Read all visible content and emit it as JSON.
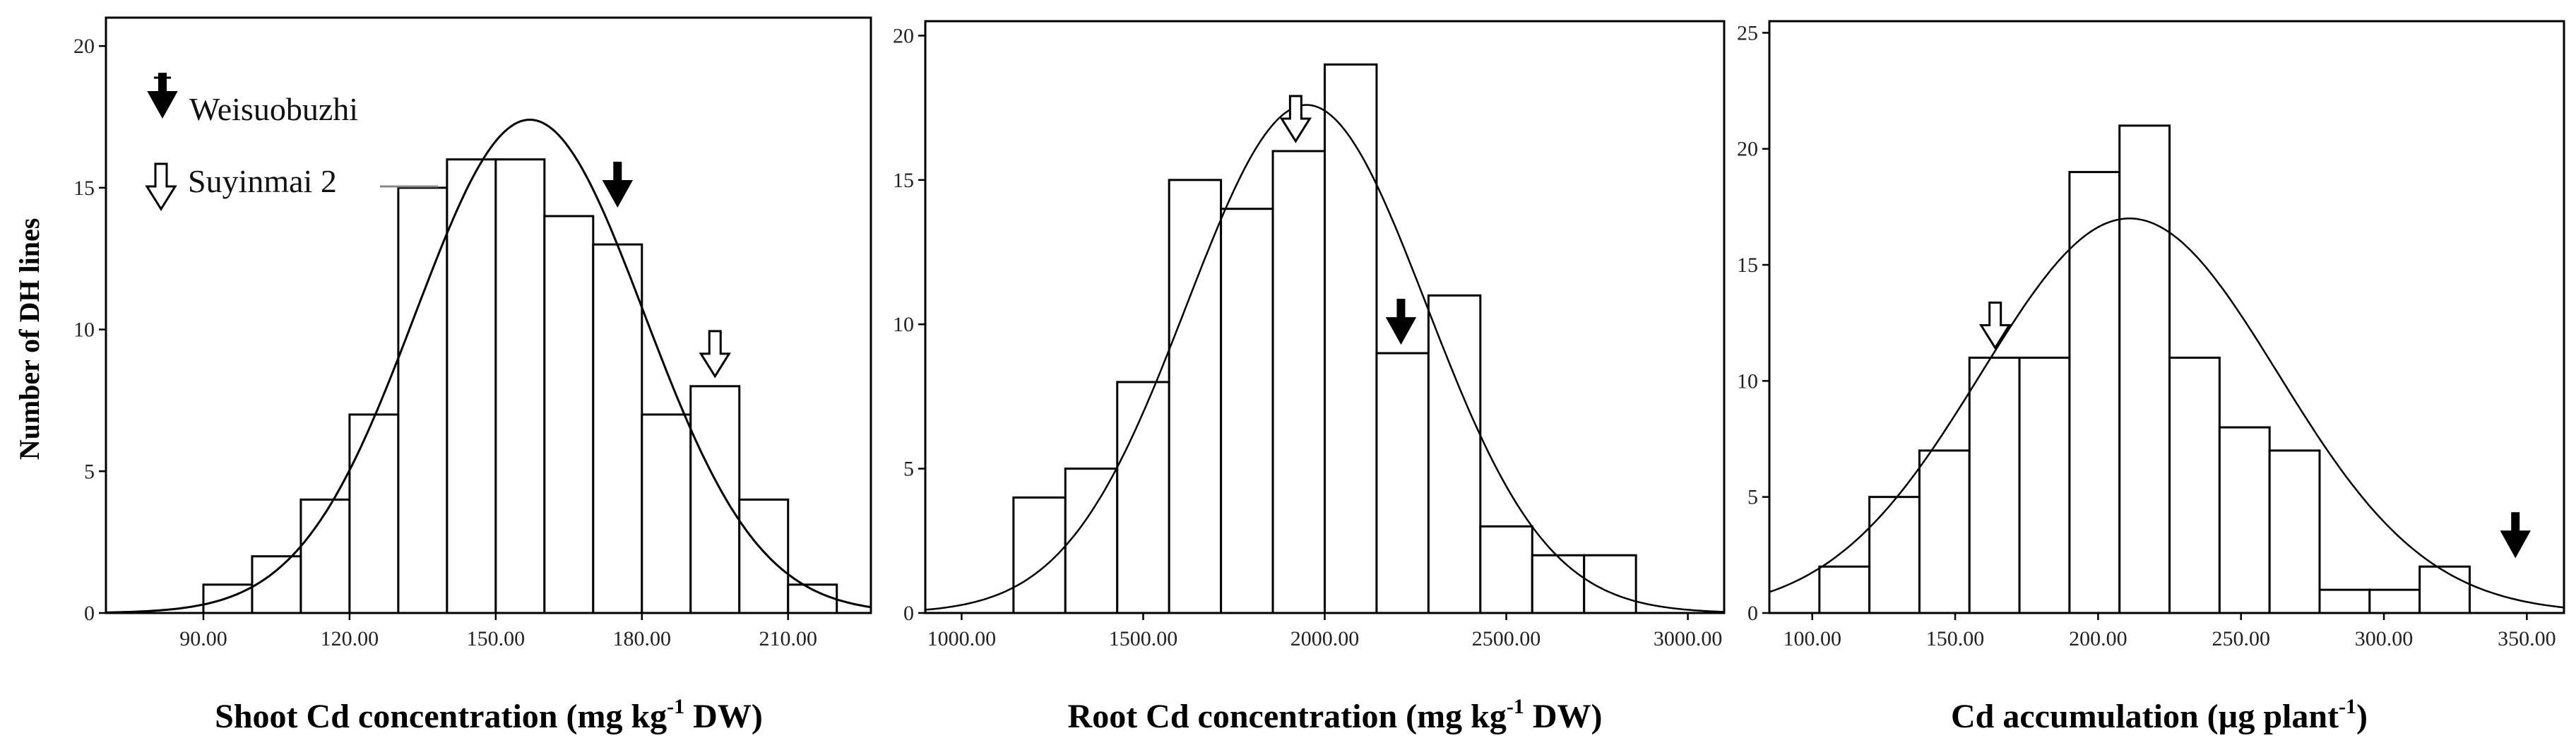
{
  "chart_data": [
    {
      "type": "bar",
      "id": "shoot",
      "xlabel": "Shoot Cd concentration (mg kg",
      "xlabel_sup": "-1",
      "xlabel_tail": " DW)",
      "ylabel": "Number of DH lines",
      "xlim": [
        70,
        227
      ],
      "ylim": [
        0,
        21
      ],
      "xticks": [
        90,
        120,
        150,
        180,
        210
      ],
      "xtick_labels": [
        "90.00",
        "120.00",
        "150.00",
        "180.00",
        "210.00"
      ],
      "yticks": [
        0,
        5,
        10,
        15,
        20
      ],
      "ytick_labels": [
        "0",
        "5",
        "10",
        "15",
        "20"
      ],
      "bin_width": 10,
      "bin_start": 90,
      "values": [
        1,
        2,
        4,
        7,
        15,
        16,
        16,
        14,
        13,
        7,
        8,
        4,
        1
      ],
      "normal_curve": {
        "mean": 157,
        "sd": 23.5,
        "peak": 17.4
      },
      "markers": [
        {
          "label": "Weisuobuzhi",
          "style": "filled",
          "x": 175,
          "count": 14
        },
        {
          "label": "Suyinmai 2",
          "style": "open",
          "x": 195,
          "count": 8
        }
      ],
      "legend": [
        {
          "style": "filled",
          "label": "Weisuobuzhi"
        },
        {
          "style": "open",
          "label": "Suyinmai 2"
        }
      ]
    },
    {
      "type": "bar",
      "id": "root",
      "xlabel": "Root Cd concentration (mg kg",
      "xlabel_sup": "-1",
      "xlabel_tail": " DW)",
      "xlim": [
        900,
        3100
      ],
      "ylim": [
        0,
        20.5
      ],
      "xticks": [
        1000,
        1500,
        2000,
        2500,
        3000
      ],
      "xtick_labels": [
        "1000.00",
        "1500.00",
        "2000.00",
        "2500.00",
        "3000.00"
      ],
      "yticks": [
        0,
        5,
        10,
        15,
        20
      ],
      "ytick_labels": [
        "0",
        "5",
        "10",
        "15",
        "20"
      ],
      "bin_width": 142.857,
      "bin_start": 1142.857,
      "values": [
        4,
        5,
        8,
        15,
        14,
        16,
        19,
        9,
        11,
        3,
        2,
        2
      ],
      "normal_curve": {
        "mean": 1950,
        "sd": 330,
        "peak": 17.6
      },
      "markers": [
        {
          "label": "Suyinmai 2",
          "style": "open",
          "x": 1920,
          "count": 16
        },
        {
          "label": "Weisuobuzhi",
          "style": "filled",
          "x": 2210,
          "count": 9
        }
      ]
    },
    {
      "type": "bar",
      "id": "accum",
      "xlabel": "Cd accumulation (µg plant",
      "xlabel_sup": "-1",
      "xlabel_tail": ")",
      "xlim": [
        85,
        363
      ],
      "ylim": [
        0,
        25.5
      ],
      "xticks": [
        100,
        150,
        200,
        250,
        300,
        350
      ],
      "xtick_labels": [
        "100.00",
        "150.00",
        "200.00",
        "250.00",
        "300.00",
        "350.00"
      ],
      "yticks": [
        0,
        5,
        10,
        15,
        20,
        25
      ],
      "ytick_labels": [
        "0",
        "5",
        "10",
        "15",
        "20",
        "25"
      ],
      "bin_width": 17.5,
      "bin_start": 102.5,
      "values": [
        2,
        5,
        7,
        11,
        11,
        19,
        21,
        11,
        8,
        7,
        1,
        1,
        2
      ],
      "normal_curve": {
        "mean": 211,
        "sd": 52,
        "peak": 17
      },
      "markers": [
        {
          "label": "Suyinmai 2",
          "style": "open",
          "x": 164,
          "count": 11
        },
        {
          "label": "Weisuobuzhi",
          "style": "filled",
          "x": 346,
          "count": 2
        }
      ]
    }
  ]
}
